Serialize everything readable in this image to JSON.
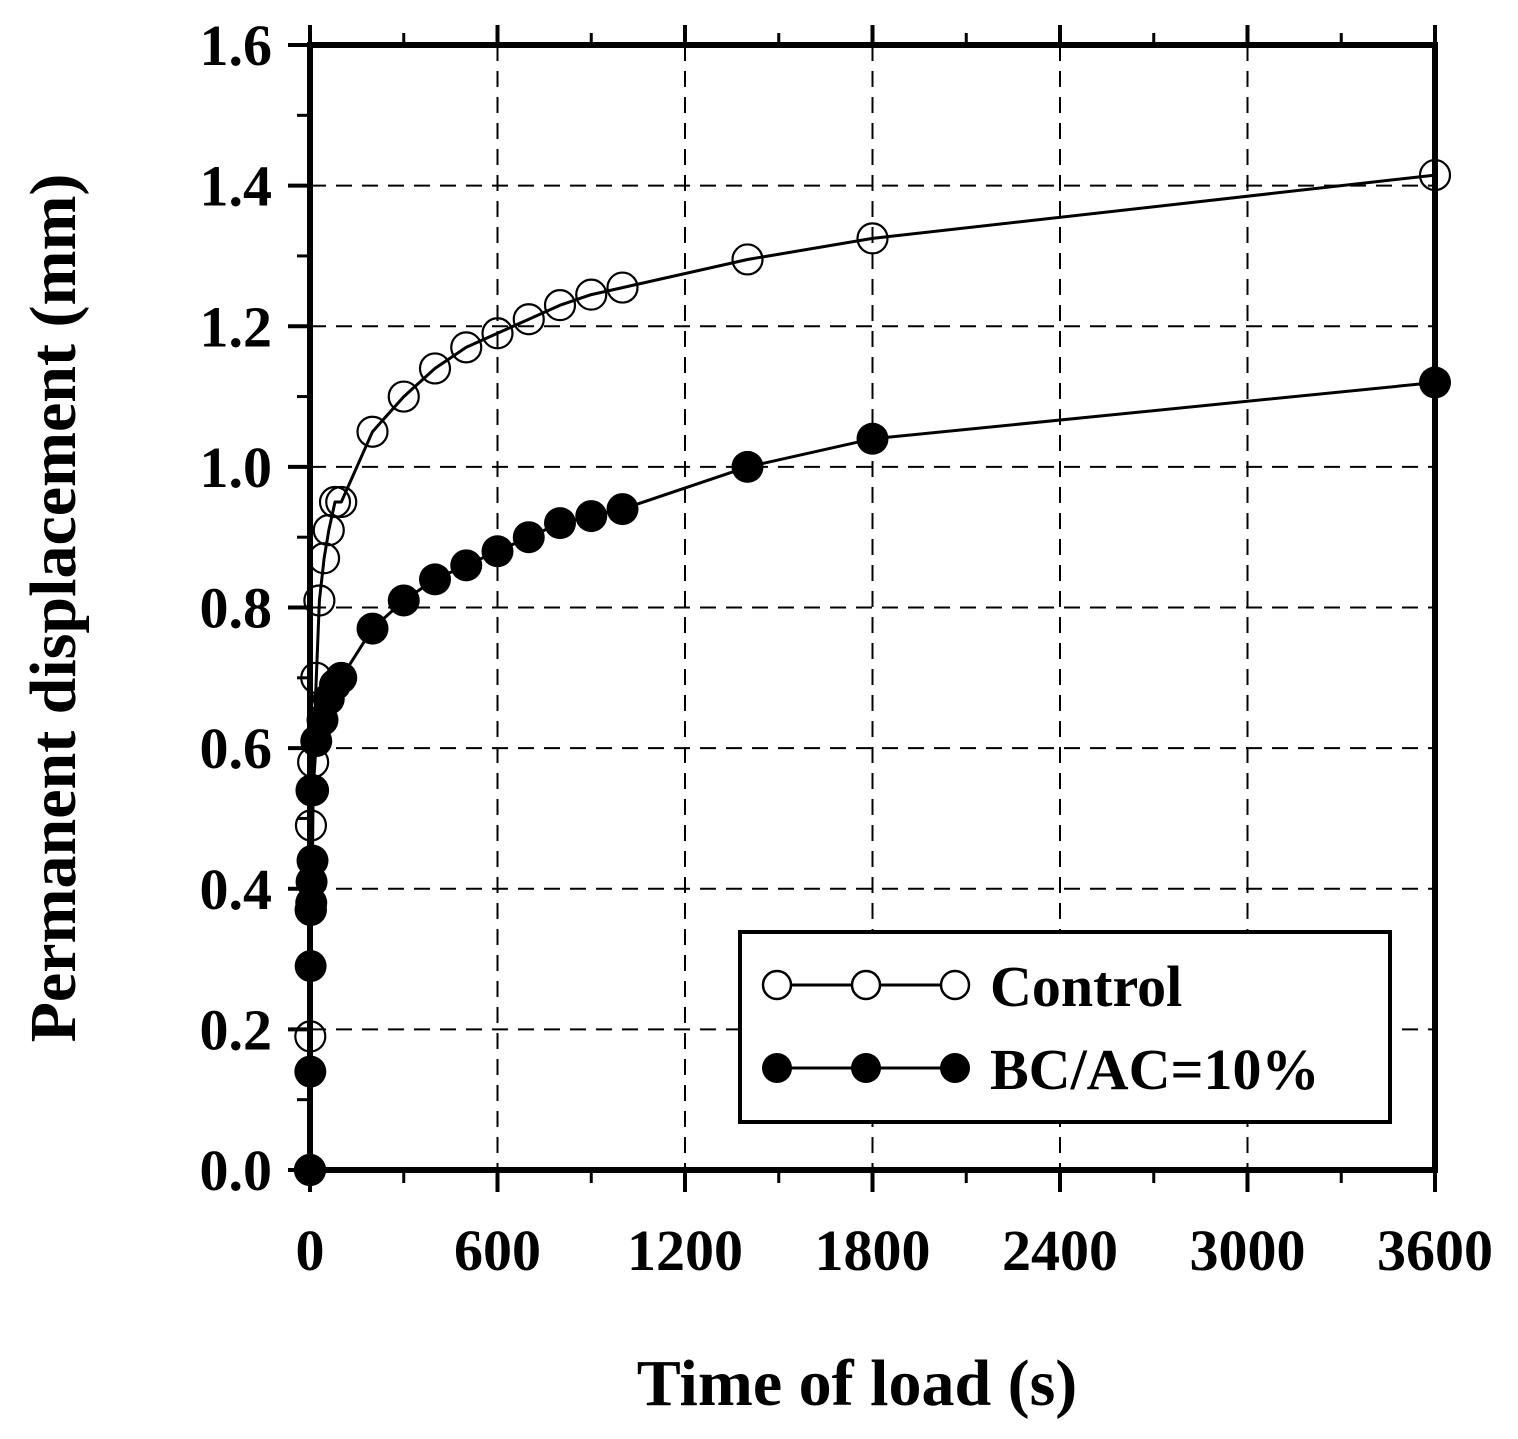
{
  "chart_data": {
    "type": "line",
    "title": "",
    "xlabel": "Time of load (s)",
    "ylabel": "Permanent displacement (mm)",
    "xlim": [
      0,
      3600
    ],
    "ylim": [
      0.0,
      1.6
    ],
    "xticks": [
      0,
      600,
      1200,
      1800,
      2400,
      3000,
      3600
    ],
    "xtick_labels": [
      "0",
      "600",
      "1200",
      "1800",
      "2400",
      "3000",
      "3600"
    ],
    "yticks": [
      0.0,
      0.2,
      0.4,
      0.6,
      0.8,
      1.0,
      1.2,
      1.4,
      1.6
    ],
    "ytick_labels": [
      "0.0",
      "0.2",
      "0.4",
      "0.6",
      "0.8",
      "1.0",
      "1.2",
      "1.4",
      "1.6"
    ],
    "grid": "dashed",
    "legend_position": "bottom-right",
    "series": [
      {
        "name": "Control",
        "marker": "open-circle",
        "color": "#000000",
        "x": [
          0,
          1,
          2,
          3,
          5,
          10,
          20,
          30,
          45,
          60,
          80,
          100,
          200,
          300,
          400,
          500,
          600,
          700,
          800,
          900,
          1000,
          1400,
          1800,
          3600
        ],
        "y": [
          0.0,
          0.19,
          0.37,
          0.49,
          0.54,
          0.58,
          0.7,
          0.81,
          0.87,
          0.91,
          0.95,
          0.95,
          1.05,
          1.1,
          1.14,
          1.17,
          1.19,
          1.21,
          1.23,
          1.245,
          1.255,
          1.295,
          1.325,
          1.415
        ]
      },
      {
        "name": "BC/AC=10%",
        "marker": "filled-circle",
        "color": "#000000",
        "x": [
          0,
          1,
          2,
          3,
          4,
          5,
          8,
          10,
          20,
          40,
          60,
          80,
          100,
          200,
          300,
          400,
          500,
          600,
          700,
          800,
          900,
          1000,
          1400,
          1800,
          3600
        ],
        "y": [
          0.0,
          0.14,
          0.29,
          0.37,
          0.38,
          0.41,
          0.44,
          0.54,
          0.61,
          0.64,
          0.67,
          0.69,
          0.7,
          0.77,
          0.81,
          0.84,
          0.86,
          0.88,
          0.9,
          0.92,
          0.93,
          0.94,
          1.0,
          1.04,
          1.12
        ]
      }
    ]
  }
}
